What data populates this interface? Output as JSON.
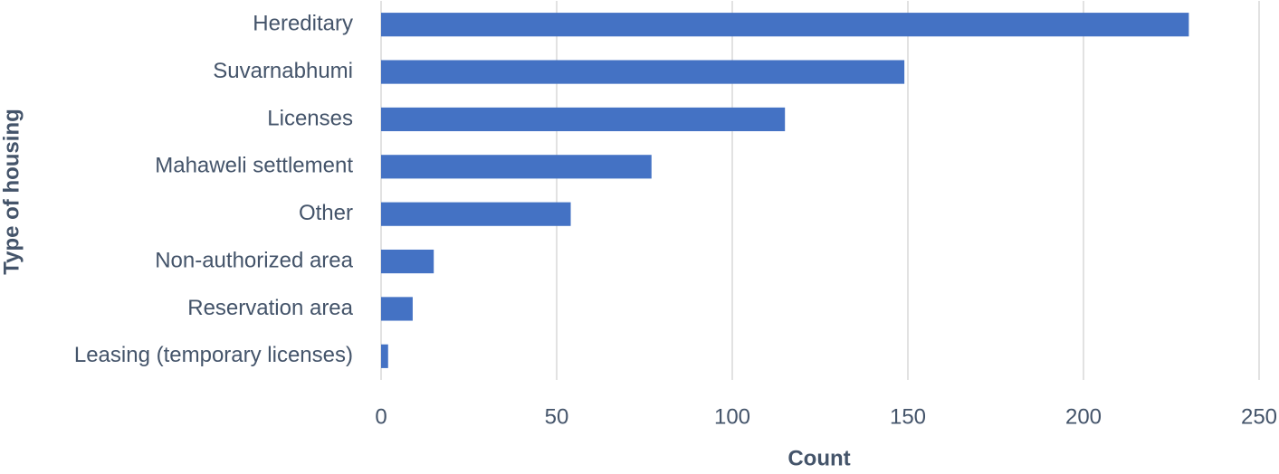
{
  "chart_data": {
    "type": "bar",
    "orientation": "horizontal",
    "categories": [
      "Hereditary",
      "Suvarnabhumi",
      "Licenses",
      "Mahaweli settlement",
      "Other",
      "Non-authorized area",
      "Reservation area",
      "Leasing (temporary licenses)"
    ],
    "values": [
      230,
      149,
      115,
      77,
      54,
      15,
      9,
      2
    ],
    "color": "#4472c4",
    "xlim": [
      0,
      250
    ],
    "xticks": [
      0,
      50,
      100,
      150,
      200,
      250
    ],
    "x_label": "Count",
    "y_label": "Type of housing",
    "grid": true
  }
}
